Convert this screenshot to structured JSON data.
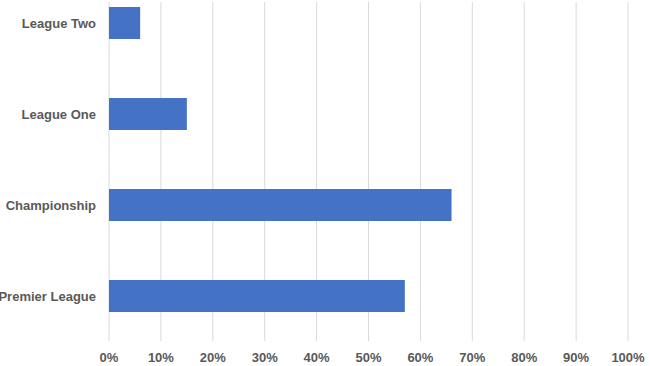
{
  "chart_data": {
    "type": "bar",
    "orientation": "horizontal",
    "categories": [
      "League Two",
      "League One",
      "Championship",
      "Premier League"
    ],
    "values": [
      6,
      15,
      66,
      57
    ],
    "color": "#4472c4",
    "xlim": [
      0,
      100
    ],
    "xticks": [
      {
        "value": 0,
        "label": "0%"
      },
      {
        "value": 10,
        "label": "10%"
      },
      {
        "value": 20,
        "label": "20%"
      },
      {
        "value": 30,
        "label": "30%"
      },
      {
        "value": 40,
        "label": "40%"
      },
      {
        "value": 50,
        "label": "50%"
      },
      {
        "value": 60,
        "label": "60%"
      },
      {
        "value": 70,
        "label": "70%"
      },
      {
        "value": 80,
        "label": "80%"
      },
      {
        "value": 90,
        "label": "90%"
      },
      {
        "value": 100,
        "label": "100%"
      }
    ],
    "grid": true
  }
}
